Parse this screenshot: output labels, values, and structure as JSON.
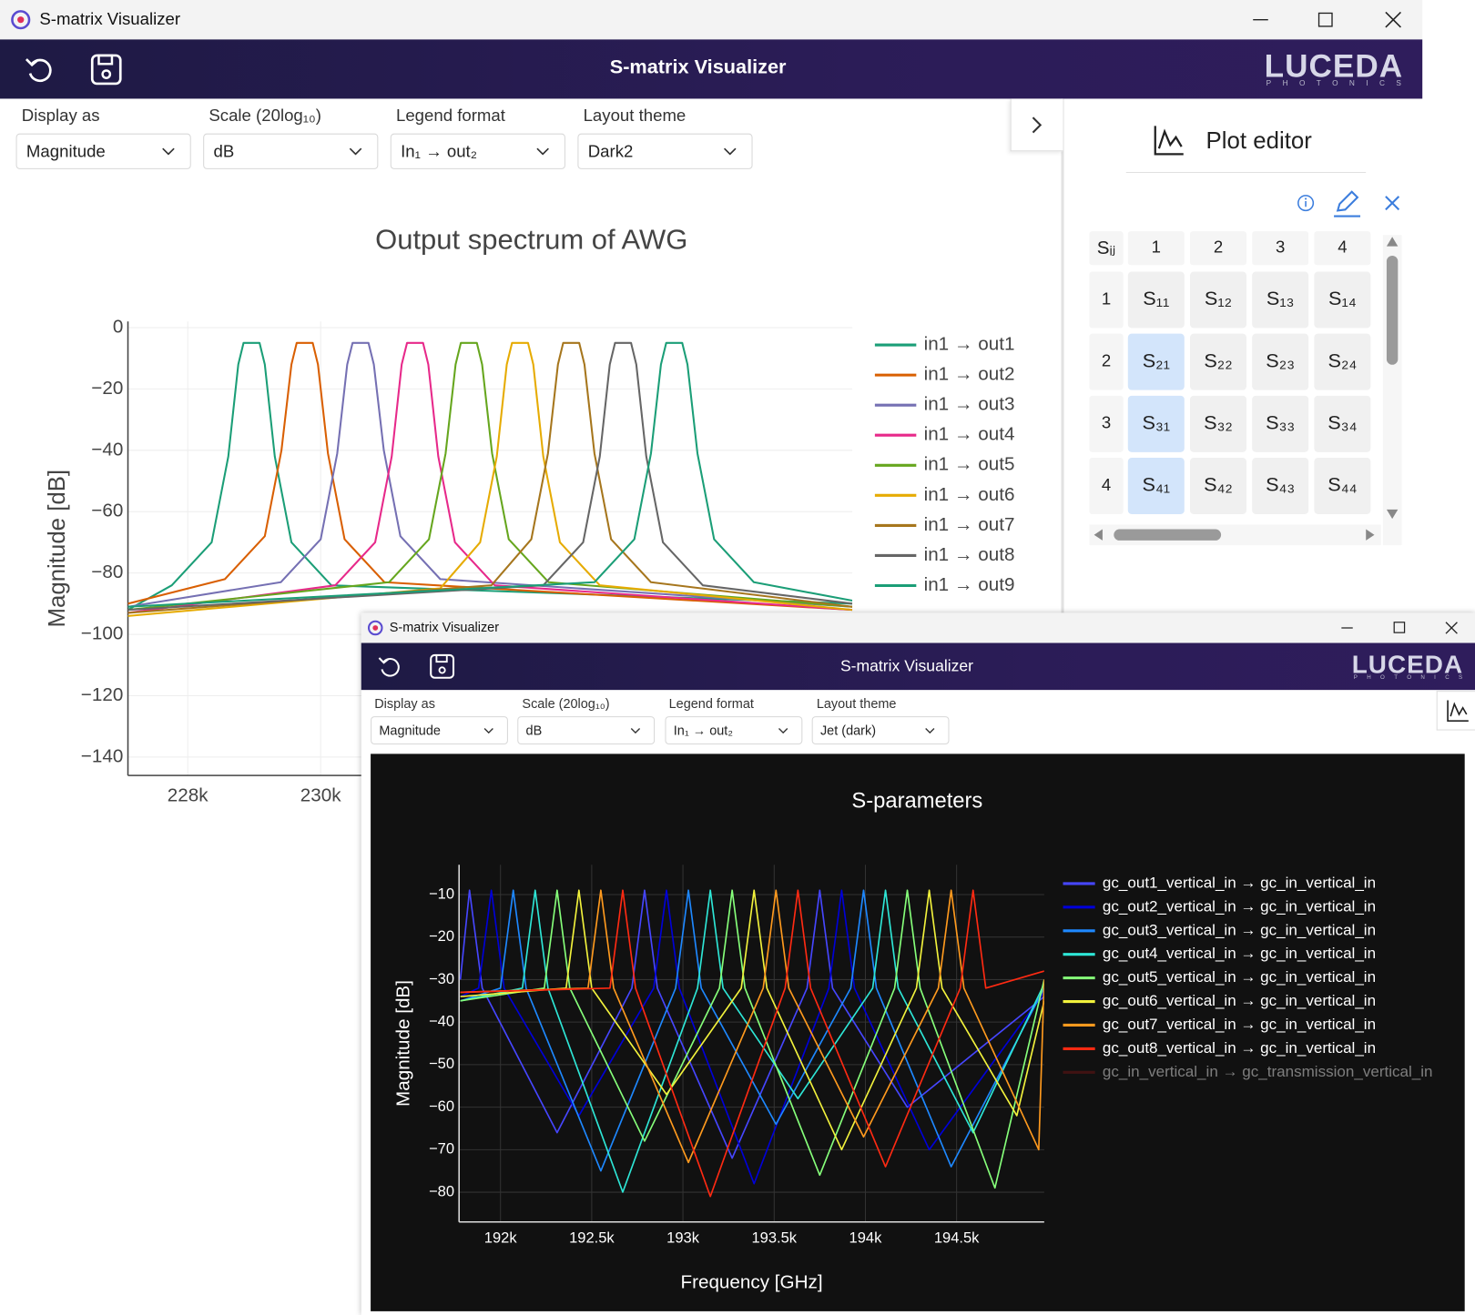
{
  "window": {
    "title": "S-matrix Visualizer"
  },
  "app": {
    "title": "S-matrix Visualizer",
    "logo": "LUCEDA",
    "logo_sub": "PHOTONICS"
  },
  "controls": [
    {
      "label": "Display as",
      "value": "Magnitude"
    },
    {
      "label": "Scale (20log₁₀)",
      "value": "dB"
    },
    {
      "label": "Legend format",
      "value": "In₁ → out₂"
    },
    {
      "label": "Layout theme",
      "value": "Dark2"
    }
  ],
  "plot_editor": {
    "title": "Plot editor",
    "corner": "Sᵢⱼ",
    "columns": [
      "1",
      "2",
      "3",
      "4"
    ],
    "rows": [
      {
        "label": "1",
        "cells": [
          {
            "label": "S₁₁",
            "selected": false
          },
          {
            "label": "S₁₂",
            "selected": false
          },
          {
            "label": "S₁₃",
            "selected": false
          },
          {
            "label": "S₁₄",
            "selected": false
          }
        ]
      },
      {
        "label": "2",
        "cells": [
          {
            "label": "S₂₁",
            "selected": true
          },
          {
            "label": "S₂₂",
            "selected": false
          },
          {
            "label": "S₂₃",
            "selected": false
          },
          {
            "label": "S₂₄",
            "selected": false
          }
        ]
      },
      {
        "label": "3",
        "cells": [
          {
            "label": "S₃₁",
            "selected": true
          },
          {
            "label": "S₃₂",
            "selected": false
          },
          {
            "label": "S₃₃",
            "selected": false
          },
          {
            "label": "S₃₄",
            "selected": false
          }
        ]
      },
      {
        "label": "4",
        "cells": [
          {
            "label": "S₄₁",
            "selected": true
          },
          {
            "label": "S₄₂",
            "selected": false
          },
          {
            "label": "S₄₃",
            "selected": false
          },
          {
            "label": "S₄₄",
            "selected": false
          }
        ]
      }
    ]
  },
  "window2": {
    "title": "S-matrix Visualizer",
    "app_title": "S-matrix Visualizer",
    "logo": "LUCEDA",
    "logo_sub": "PHOTONICS",
    "controls": [
      {
        "label": "Display as",
        "value": "Magnitude"
      },
      {
        "label": "Scale (20log₁₀)",
        "value": "dB"
      },
      {
        "label": "Legend format",
        "value": "In₁ → out₂"
      },
      {
        "label": "Layout theme",
        "value": "Jet (dark)"
      }
    ]
  },
  "chart_data": [
    {
      "type": "line",
      "title": "Output spectrum of AWG",
      "y_label": "Magnitude [dB]",
      "xlim": [
        227100,
        238000
      ],
      "ylim": [
        -146,
        2
      ],
      "xticks": [
        {
          "value": 228000,
          "label": "228k"
        },
        {
          "value": 230000,
          "label": "230k"
        }
      ],
      "yticks": [
        0,
        {
          "value": -20,
          "label": "−20"
        },
        {
          "value": -40,
          "label": "−40"
        },
        {
          "value": -60,
          "label": "−60"
        },
        {
          "value": -80,
          "label": "−80"
        },
        {
          "value": -100,
          "label": "−100"
        },
        {
          "value": -120,
          "label": "−120"
        },
        {
          "value": -140,
          "label": "−140"
        }
      ],
      "grid": true,
      "grid_color": "#eeeeee",
      "background": "#ffffff",
      "text_color": "#444444",
      "series": [
        {
          "name": "in1 → out1",
          "color": "#1b9e77",
          "x": [
            227100,
            227760,
            228360,
            228610,
            228760,
            228840,
            229080,
            229160,
            229310,
            229560,
            230160,
            238000
          ],
          "values": [
            -92,
            -84,
            -70,
            -42,
            -12,
            -5,
            -5,
            -12,
            -42,
            -70,
            -84,
            -90
          ]
        },
        {
          "name": "in1 → out2",
          "color": "#d95f02",
          "x": [
            227100,
            228560,
            229160,
            229410,
            229560,
            229640,
            229880,
            229960,
            230110,
            230360,
            230960,
            238000
          ],
          "values": [
            -90,
            -82,
            -68,
            -40,
            -12,
            -5,
            -5,
            -12,
            -41,
            -69,
            -83,
            -92
          ]
        },
        {
          "name": "in1 → out3",
          "color": "#7570b3",
          "x": [
            227100,
            229400,
            230000,
            230250,
            230400,
            230480,
            230720,
            230800,
            230950,
            231200,
            231800,
            238000
          ],
          "values": [
            -91,
            -83,
            -69,
            -41,
            -12,
            -5,
            -5,
            -12,
            -40,
            -68,
            -82,
            -91
          ]
        },
        {
          "name": "in1 → out4",
          "color": "#e7298a",
          "x": [
            227100,
            230220,
            230820,
            231070,
            231220,
            231300,
            231540,
            231620,
            231770,
            232020,
            232620,
            238000
          ],
          "values": [
            -93,
            -84,
            -70,
            -42,
            -12,
            -5,
            -5,
            -12,
            -42,
            -70,
            -84,
            -92
          ]
        },
        {
          "name": "in1 → out5",
          "color": "#66a61e",
          "x": [
            227100,
            231030,
            231630,
            231880,
            232030,
            232110,
            232350,
            232430,
            232580,
            232830,
            233430,
            238000
          ],
          "values": [
            -92,
            -83,
            -69,
            -41,
            -12,
            -5,
            -5,
            -12,
            -41,
            -69,
            -83,
            -91
          ]
        },
        {
          "name": "in1 → out6",
          "color": "#e6ab02",
          "x": [
            227100,
            231800,
            232400,
            232650,
            232800,
            232880,
            233120,
            233200,
            233350,
            233600,
            234200,
            238000
          ],
          "values": [
            -94,
            -85,
            -70,
            -42,
            -12,
            -5,
            -5,
            -12,
            -42,
            -70,
            -84,
            -92
          ]
        },
        {
          "name": "in1 → out7",
          "color": "#a6761d",
          "x": [
            227100,
            232570,
            233170,
            233420,
            233570,
            233650,
            233890,
            233970,
            234120,
            234370,
            234970,
            238000
          ],
          "values": [
            -93,
            -84,
            -69,
            -41,
            -12,
            -5,
            -5,
            -12,
            -41,
            -69,
            -83,
            -91
          ]
        },
        {
          "name": "in1 → out8",
          "color": "#666666",
          "x": [
            227100,
            233350,
            233950,
            234200,
            234350,
            234430,
            234670,
            234750,
            234900,
            235150,
            235750,
            238000
          ],
          "values": [
            -92,
            -84,
            -70,
            -42,
            -12,
            -5,
            -5,
            -12,
            -42,
            -70,
            -84,
            -90
          ]
        },
        {
          "name": "in1 → out9",
          "color": "#1b9e77",
          "x": [
            227100,
            234120,
            234720,
            234970,
            235120,
            235200,
            235440,
            235520,
            235670,
            235920,
            236520,
            238000
          ],
          "values": [
            -91,
            -83,
            -69,
            -41,
            -12,
            -5,
            -5,
            -12,
            -41,
            -69,
            -83,
            -89
          ]
        }
      ]
    },
    {
      "type": "line",
      "title": "S-parameters",
      "x_label": "Frequency [GHz]",
      "y_label": "Magnitude [dB]",
      "xlim": [
        191773,
        194980
      ],
      "ylim": [
        -87,
        -3
      ],
      "xticks": [
        {
          "value": 192000,
          "label": "192k"
        },
        {
          "value": 192500,
          "label": "192.5k"
        },
        {
          "value": 193000,
          "label": "193k"
        },
        {
          "value": 193500,
          "label": "193.5k"
        },
        {
          "value": 194000,
          "label": "194k"
        },
        {
          "value": 194500,
          "label": "194.5k"
        }
      ],
      "yticks": [
        {
          "value": -10,
          "label": "−10"
        },
        {
          "value": -20,
          "label": "−20"
        },
        {
          "value": -30,
          "label": "−30"
        },
        {
          "value": -40,
          "label": "−40"
        },
        {
          "value": -50,
          "label": "−50"
        },
        {
          "value": -60,
          "label": "−60"
        },
        {
          "value": -70,
          "label": "−70"
        },
        {
          "value": -80,
          "label": "−80"
        }
      ],
      "grid": true,
      "grid_color": "#333333",
      "background": "#111111",
      "text_color": "#ffffff",
      "series": [
        {
          "name": "gc_out1_vertical_in → gc_in_vertical_in",
          "color": "#4646ff",
          "x": [
            191780,
            191830,
            191900,
            192310,
            192720,
            192790,
            192860,
            193270,
            193680,
            193750,
            193820,
            194230,
            194980
          ],
          "values": [
            -30,
            -9,
            -32,
            -66,
            -32,
            -9,
            -32,
            -72,
            -32,
            -9,
            -32,
            -60,
            -34
          ]
        },
        {
          "name": "gc_out2_vertical_in → gc_in_vertical_in",
          "color": "#0000d8",
          "x": [
            191780,
            191880,
            191950,
            192020,
            192430,
            192840,
            192910,
            192980,
            193390,
            193800,
            193870,
            193940,
            194350,
            194980
          ],
          "values": [
            -34,
            -32,
            -9,
            -32,
            -62,
            -32,
            -9,
            -32,
            -78,
            -32,
            -9,
            -32,
            -70,
            -33
          ]
        },
        {
          "name": "gc_out3_vertical_in → gc_in_vertical_in",
          "color": "#1e88ff",
          "x": [
            191780,
            192000,
            192070,
            192140,
            192550,
            192960,
            193030,
            193100,
            193510,
            193920,
            193990,
            194060,
            194470,
            194980
          ],
          "values": [
            -35,
            -32,
            -9,
            -32,
            -75,
            -32,
            -9,
            -32,
            -64,
            -32,
            -9,
            -32,
            -74,
            -32
          ]
        },
        {
          "name": "gc_out4_vertical_in → gc_in_vertical_in",
          "color": "#2ee6d6",
          "x": [
            191780,
            192120,
            192190,
            192260,
            192670,
            193080,
            193150,
            193220,
            193630,
            194040,
            194110,
            194180,
            194590,
            194980
          ],
          "values": [
            -35,
            -32,
            -9,
            -32,
            -80,
            -32,
            -9,
            -32,
            -58,
            -32,
            -9,
            -32,
            -66,
            -31
          ]
        },
        {
          "name": "gc_out5_vertical_in → gc_in_vertical_in",
          "color": "#86ff7a",
          "x": [
            191780,
            192240,
            192310,
            192380,
            192790,
            193200,
            193270,
            193340,
            193750,
            194160,
            194230,
            194300,
            194710,
            194980
          ],
          "values": [
            -35,
            -32,
            -9,
            -32,
            -68,
            -32,
            -9,
            -32,
            -76,
            -32,
            -9,
            -32,
            -79,
            -30
          ]
        },
        {
          "name": "gc_out6_vertical_in → gc_in_vertical_in",
          "color": "#f2f23c",
          "x": [
            191780,
            192360,
            192430,
            192500,
            192910,
            193320,
            193390,
            193460,
            193870,
            194280,
            194350,
            194420,
            194830,
            194980
          ],
          "values": [
            -34,
            -32,
            -9,
            -32,
            -57,
            -32,
            -9,
            -32,
            -70,
            -32,
            -9,
            -32,
            -62,
            -35
          ]
        },
        {
          "name": "gc_out7_vertical_in → gc_in_vertical_in",
          "color": "#ff9a1e",
          "x": [
            191780,
            192480,
            192550,
            192620,
            193030,
            193440,
            193510,
            193580,
            193990,
            194400,
            194470,
            194540,
            194950,
            194980
          ],
          "values": [
            -33,
            -32,
            -9,
            -32,
            -73,
            -32,
            -9,
            -32,
            -67,
            -32,
            -9,
            -32,
            -70,
            -30
          ]
        },
        {
          "name": "gc_out8_vertical_in → gc_in_vertical_in",
          "color": "#ff2a12",
          "x": [
            191780,
            192600,
            192670,
            192740,
            193150,
            193560,
            193630,
            193700,
            194110,
            194520,
            194590,
            194660,
            194980
          ],
          "values": [
            -33,
            -32,
            -9,
            -32,
            -81,
            -32,
            -9,
            -32,
            -74,
            -32,
            -9,
            -32,
            -28
          ]
        },
        {
          "name": "gc_in_vertical_in → gc_transmission_vertical_in",
          "color": "#7a1414",
          "visible": false
        }
      ]
    }
  ]
}
